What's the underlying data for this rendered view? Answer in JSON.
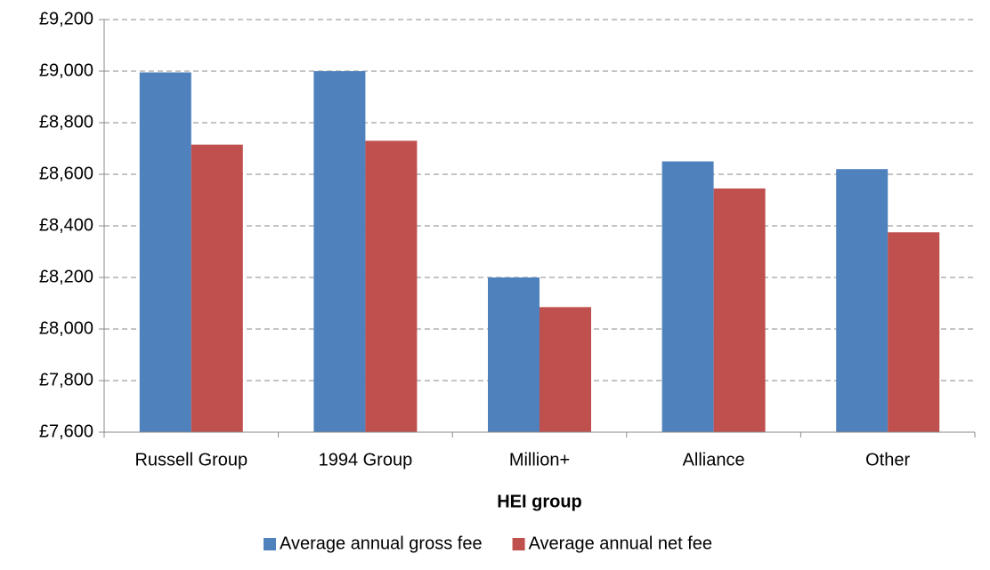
{
  "chart_data": {
    "type": "bar",
    "x_label": "HEI group",
    "categories": [
      "Russell Group",
      "1994 Group",
      "Million+",
      "Alliance",
      "Other"
    ],
    "series": [
      {
        "name": "Average annual gross fee",
        "color": "#4f81bd",
        "values": [
          8995,
          9000,
          8200,
          8650,
          8620
        ]
      },
      {
        "name": "Average annual net fee",
        "color": "#c0504d",
        "values": [
          8715,
          8730,
          8085,
          8545,
          8375
        ]
      }
    ],
    "ylim": [
      7600,
      9200
    ],
    "yticks": [
      {
        "value": 7600,
        "label": "£7,600"
      },
      {
        "value": 7800,
        "label": "£7,800"
      },
      {
        "value": 8000,
        "label": "£8,000"
      },
      {
        "value": 8200,
        "label": "£8,200"
      },
      {
        "value": 8400,
        "label": "£8,400"
      },
      {
        "value": 8600,
        "label": "£8,600"
      },
      {
        "value": 8800,
        "label": "£8,800"
      },
      {
        "value": 9000,
        "label": "£9,000"
      },
      {
        "value": 9200,
        "label": "£9,200"
      }
    ],
    "grid": true,
    "legend": "bottom"
  }
}
